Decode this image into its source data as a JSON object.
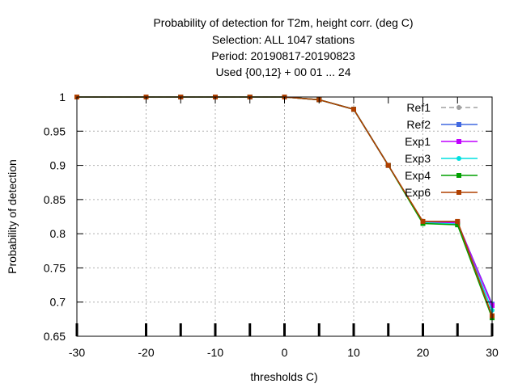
{
  "chart_data": {
    "type": "line",
    "title_lines": [
      "Probability of detection  for T2m, height corr. (deg C)",
      "Selection: ALL    1047 stations",
      "Period: 20190817-20190823",
      "Used {00,12} + 00 01 ... 24"
    ],
    "xlabel": "thresholds C)",
    "ylabel": "Probability of detection",
    "xlim": [
      -30,
      30
    ],
    "ylim": [
      0.65,
      1.0
    ],
    "x_ticks": [
      -30,
      -20,
      -10,
      0,
      10,
      20,
      30
    ],
    "y_ticks": [
      0.65,
      0.7,
      0.75,
      0.8,
      0.85,
      0.9,
      0.95,
      1
    ],
    "grid": true,
    "legend_position": "top-right",
    "x": [
      -30,
      -20,
      -15,
      -10,
      -5,
      0,
      5,
      10,
      15,
      20,
      25,
      30
    ],
    "series": [
      {
        "name": "Ref1",
        "color": "#a0a0a0",
        "dashed": true,
        "marker": "circle",
        "values": [
          1.0,
          1.0,
          1.0,
          1.0,
          1.0,
          1.0,
          0.996,
          0.982,
          0.9,
          0.817,
          0.816,
          0.697
        ]
      },
      {
        "name": "Ref2",
        "color": "#4169e1",
        "dashed": false,
        "marker": "square",
        "values": [
          1.0,
          1.0,
          1.0,
          1.0,
          1.0,
          1.0,
          0.996,
          0.982,
          0.9,
          0.817,
          0.816,
          0.697
        ]
      },
      {
        "name": "Exp1",
        "color": "#c000ff",
        "dashed": false,
        "marker": "square",
        "values": [
          1.0,
          1.0,
          1.0,
          1.0,
          1.0,
          1.0,
          0.996,
          0.982,
          0.9,
          0.817,
          0.816,
          0.695
        ]
      },
      {
        "name": "Exp3",
        "color": "#00e0e0",
        "dashed": false,
        "marker": "circle",
        "values": [
          1.0,
          1.0,
          1.0,
          1.0,
          1.0,
          1.0,
          0.996,
          0.982,
          0.9,
          0.816,
          0.814,
          0.688
        ]
      },
      {
        "name": "Exp4",
        "color": "#00a000",
        "dashed": false,
        "marker": "square",
        "values": [
          1.0,
          1.0,
          1.0,
          1.0,
          1.0,
          1.0,
          0.996,
          0.982,
          0.9,
          0.815,
          0.813,
          0.677
        ]
      },
      {
        "name": "Exp6",
        "color": "#b04000",
        "dashed": false,
        "marker": "square",
        "values": [
          1.0,
          1.0,
          1.0,
          1.0,
          1.0,
          1.0,
          0.996,
          0.982,
          0.9,
          0.818,
          0.818,
          0.68
        ]
      }
    ]
  }
}
